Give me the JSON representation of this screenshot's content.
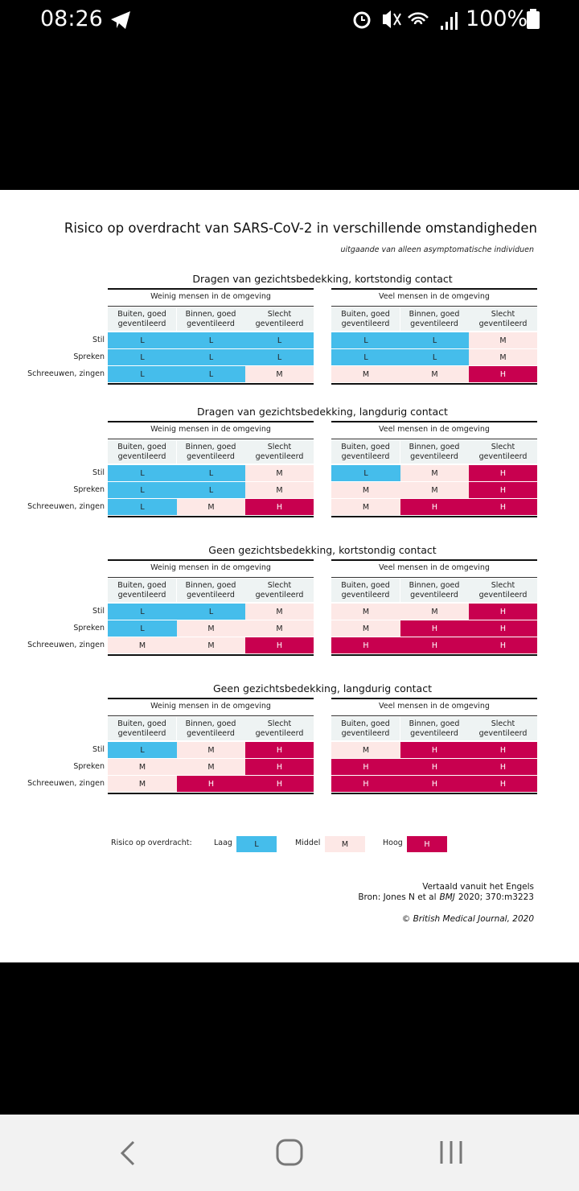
{
  "status_bar": {
    "time": "08:26",
    "battery": "100%"
  },
  "figure": {
    "title": "Risico op overdracht van SARS-CoV-2 in verschillende omstandigheden",
    "subtitle": "uitgaande van alleen asymptomatische individuen",
    "sections": [
      {
        "title": "Dragen van gezichtsbedekking, kortstondig contact",
        "rows": [
          "Stil",
          "Spreken",
          "Schreeuwen, zingen"
        ],
        "groups": [
          {
            "title": "Weinig mensen in de omgeving",
            "columns": [
              "Buiten, goed geventileerd",
              "Binnen, goed geventileerd",
              "Slecht geventileerd"
            ],
            "cells": [
              [
                "L",
                "L",
                "L"
              ],
              [
                "L",
                "L",
                "L"
              ],
              [
                "L",
                "L",
                "M"
              ]
            ]
          },
          {
            "title": "Veel mensen in de omgeving",
            "columns": [
              "Buiten, goed geventileerd",
              "Binnen, goed geventileerd",
              "Slecht geventileerd"
            ],
            "cells": [
              [
                "L",
                "L",
                "M"
              ],
              [
                "L",
                "L",
                "M"
              ],
              [
                "M",
                "M",
                "H"
              ]
            ]
          }
        ]
      },
      {
        "title": "Dragen van gezichtsbedekking, langdurig contact",
        "rows": [
          "Stil",
          "Spreken",
          "Schreeuwen, zingen"
        ],
        "groups": [
          {
            "title": "Weinig mensen in de omgeving",
            "columns": [
              "Buiten, goed geventileerd",
              "Binnen, goed geventileerd",
              "Slecht geventileerd"
            ],
            "cells": [
              [
                "L",
                "L",
                "M"
              ],
              [
                "L",
                "L",
                "M"
              ],
              [
                "L",
                "M",
                "H"
              ]
            ]
          },
          {
            "title": "Veel mensen in de omgeving",
            "columns": [
              "Buiten, goed geventileerd",
              "Binnen, goed geventileerd",
              "Slecht geventileerd"
            ],
            "cells": [
              [
                "L",
                "M",
                "H"
              ],
              [
                "M",
                "M",
                "H"
              ],
              [
                "M",
                "H",
                "H"
              ]
            ]
          }
        ]
      },
      {
        "title": "Geen gezichtsbedekking, kortstondig contact",
        "rows": [
          "Stil",
          "Spreken",
          "Schreeuwen, zingen"
        ],
        "groups": [
          {
            "title": "Weinig mensen in de omgeving",
            "columns": [
              "Buiten, goed geventileerd",
              "Binnen, goed geventileerd",
              "Slecht geventileerd"
            ],
            "cells": [
              [
                "L",
                "L",
                "M"
              ],
              [
                "L",
                "M",
                "M"
              ],
              [
                "M",
                "M",
                "H"
              ]
            ]
          },
          {
            "title": "Veel mensen in de omgeving",
            "columns": [
              "Buiten, goed geventileerd",
              "Binnen, goed geventileerd",
              "Slecht geventileerd"
            ],
            "cells": [
              [
                "M",
                "M",
                "H"
              ],
              [
                "M",
                "H",
                "H"
              ],
              [
                "H",
                "H",
                "H"
              ]
            ]
          }
        ]
      },
      {
        "title": "Geen gezichtsbedekking, langdurig contact",
        "rows": [
          "Stil",
          "Spreken",
          "Schreeuwen, zingen"
        ],
        "groups": [
          {
            "title": "Weinig mensen in de omgeving",
            "columns": [
              "Buiten, goed geventileerd",
              "Binnen, goed geventileerd",
              "Slecht geventileerd"
            ],
            "cells": [
              [
                "L",
                "M",
                "H"
              ],
              [
                "M",
                "M",
                "H"
              ],
              [
                "M",
                "H",
                "H"
              ]
            ]
          },
          {
            "title": "Veel mensen in de omgeving",
            "columns": [
              "Buiten, goed geventileerd",
              "Binnen, goed geventileerd",
              "Slecht geventileerd"
            ],
            "cells": [
              [
                "M",
                "H",
                "H"
              ],
              [
                "H",
                "H",
                "H"
              ],
              [
                "H",
                "H",
                "H"
              ]
            ]
          }
        ]
      }
    ],
    "legend": {
      "label": "Risico op overdracht:",
      "items": [
        {
          "name": "Laag",
          "code": "L",
          "color": "#45bdeb"
        },
        {
          "name": "Middel",
          "code": "M",
          "color": "#fde8e6"
        },
        {
          "name": "Hoog",
          "code": "H",
          "color": "#c8004f"
        }
      ]
    },
    "footer": {
      "translated": "Vertaald vanuit het Engels",
      "source_prefix": "Bron: Jones N et al",
      "source_journal": "BMJ",
      "source_suffix": "2020; 370:m3223",
      "copyright": "© British Medical Journal, 2020"
    }
  }
}
